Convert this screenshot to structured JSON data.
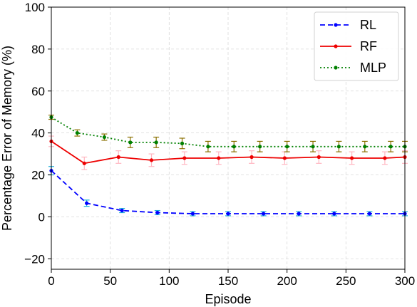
{
  "chart_data": {
    "type": "line",
    "title": "",
    "xlabel": "Episode",
    "ylabel": "Percentage Error of Memory (%)",
    "xlim": [
      0,
      300
    ],
    "ylim": [
      -25,
      100
    ],
    "xticks": [
      0,
      50,
      100,
      150,
      200,
      250,
      300
    ],
    "yticks": [
      -20,
      0,
      20,
      40,
      60,
      80,
      100
    ],
    "xtick_labels": [
      "0",
      "50",
      "100",
      "150",
      "200",
      "250",
      "300"
    ],
    "ytick_labels": [
      "−20",
      "0",
      "20",
      "40",
      "60",
      "80",
      "100"
    ],
    "grid": true,
    "legend_position": "top-right",
    "series": [
      {
        "name": "RL",
        "color": "#0000ff",
        "errcolor": "#1aaed8",
        "linestyle": "dashed",
        "x": [
          0,
          30,
          60,
          90,
          120,
          150,
          180,
          210,
          240,
          270,
          300
        ],
        "y": [
          22,
          6.5,
          3,
          2,
          1.5,
          1.5,
          1.5,
          1.5,
          1.5,
          1.5,
          1.5
        ],
        "err": [
          2,
          1.5,
          1,
          1,
          1,
          1,
          1,
          1,
          1,
          1,
          1
        ]
      },
      {
        "name": "RF",
        "color": "#ee0000",
        "errcolor": "#ffb6c1",
        "linestyle": "solid",
        "x": [
          0,
          28,
          57,
          85,
          113,
          142,
          170,
          198,
          227,
          255,
          283,
          300
        ],
        "y": [
          36,
          25.5,
          28.5,
          27,
          28,
          28,
          28.5,
          28,
          28.5,
          28,
          28,
          28.5
        ],
        "err": [
          2.5,
          3,
          3,
          3,
          3,
          3,
          3,
          3,
          3,
          3,
          3,
          3
        ]
      },
      {
        "name": "MLP",
        "color": "#008000",
        "errcolor": "#8a7000",
        "linestyle": "dotted",
        "x": [
          0,
          22,
          45,
          67,
          89,
          111,
          133,
          155,
          177,
          200,
          222,
          244,
          266,
          288,
          300
        ],
        "y": [
          47.5,
          40,
          38,
          35.5,
          35.5,
          35,
          33.5,
          33.5,
          33.5,
          33.5,
          33.5,
          33.5,
          33.5,
          33.5,
          33.5
        ],
        "err": [
          1,
          1.5,
          1.5,
          2.5,
          2.5,
          2.5,
          2.5,
          2.5,
          2.5,
          2.5,
          2.5,
          2.5,
          2.5,
          2.5,
          2.5
        ]
      }
    ]
  }
}
